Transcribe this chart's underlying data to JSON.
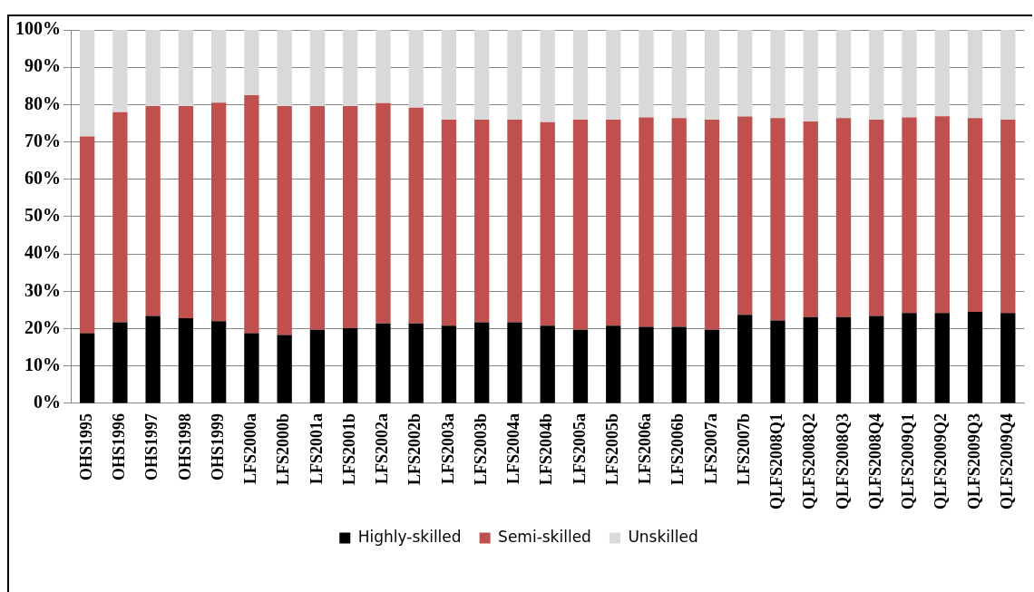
{
  "chart_data": {
    "type": "bar",
    "stacked": true,
    "categories": [
      "OHS1995",
      "OHS1996",
      "OHS1997",
      "OHS1998",
      "OHS1999",
      "LFS2000a",
      "LFS2000b",
      "LFS2001a",
      "LFS2001b",
      "LFS2002a",
      "LFS2002b",
      "LFS2003a",
      "LFS2003b",
      "LFS2004a",
      "LFS2004b",
      "LFS2005a",
      "LFS2005b",
      "LFS2006a",
      "LFS2006b",
      "LFS2007a",
      "LFS2007b",
      "QLFS2008Q1",
      "QLFS2008Q2",
      "QLFS2008Q3",
      "QLFS2008Q4",
      "QLFS2009Q1",
      "QLFS2009Q2",
      "QLFS2009Q3",
      "QLFS2009Q4"
    ],
    "series": [
      {
        "name": "Highly-skilled",
        "color": "#000000",
        "values": [
          18.8,
          21.7,
          23.4,
          22.8,
          22,
          18.8,
          18.3,
          19.7,
          20.2,
          21.4,
          21.4,
          20.8,
          21.7,
          21.7,
          20.8,
          19.7,
          20.8,
          20.5,
          20.5,
          19.7,
          23.7,
          22.2,
          23.1,
          23.1,
          23.4,
          24.2,
          24.2,
          24.5,
          24.2
        ]
      },
      {
        "name": "Semi-skilled",
        "color": "#c0504d",
        "values": [
          52.7,
          56.3,
          56.2,
          56.8,
          58.5,
          63.7,
          61.3,
          59.9,
          59.4,
          59,
          57.8,
          55.2,
          54.3,
          54.3,
          54.5,
          56.3,
          55.2,
          56.1,
          55.9,
          56.3,
          53.1,
          54.2,
          52.4,
          53.3,
          52.6,
          52.4,
          52.7,
          51.9,
          51.8
        ]
      },
      {
        "name": "Unskilled",
        "color": "#d9d9d9",
        "values": [
          28.5,
          22,
          20.4,
          20.4,
          19.5,
          17.5,
          20.4,
          20.4,
          20.4,
          19.6,
          20.8,
          24,
          24,
          24,
          24.7,
          24,
          24,
          23.4,
          23.6,
          24,
          23.2,
          23.6,
          24.5,
          23.6,
          24,
          23.4,
          23.1,
          23.6,
          24
        ]
      }
    ],
    "ylim": [
      0,
      100
    ],
    "yticks": [
      {
        "value": 0,
        "label": "0%"
      },
      {
        "value": 10,
        "label": "10%"
      },
      {
        "value": 20,
        "label": "20%"
      },
      {
        "value": 30,
        "label": "30%"
      },
      {
        "value": 40,
        "label": "40%"
      },
      {
        "value": 50,
        "label": "50%"
      },
      {
        "value": 60,
        "label": "60%"
      },
      {
        "value": 70,
        "label": "70%"
      },
      {
        "value": 80,
        "label": "80%"
      },
      {
        "value": 90,
        "label": "90%"
      },
      {
        "value": 100,
        "label": "100%"
      }
    ],
    "grid": "y",
    "legend": "bottom"
  }
}
